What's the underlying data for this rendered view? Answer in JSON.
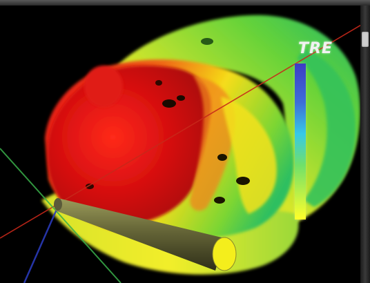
{
  "colorbar": {
    "title": "TRE",
    "gradient_colors": [
      "#3d3dc4",
      "#3d6ed8",
      "#37c9e6",
      "#6fe06a",
      "#ffff2a"
    ]
  },
  "scene": {
    "description_icon": "3d-surface-render",
    "background_color": "#000000",
    "surface_colors": [
      "#e01010",
      "#f07a10",
      "#f2e81a",
      "#6ed83a",
      "#2bbf6a"
    ]
  }
}
